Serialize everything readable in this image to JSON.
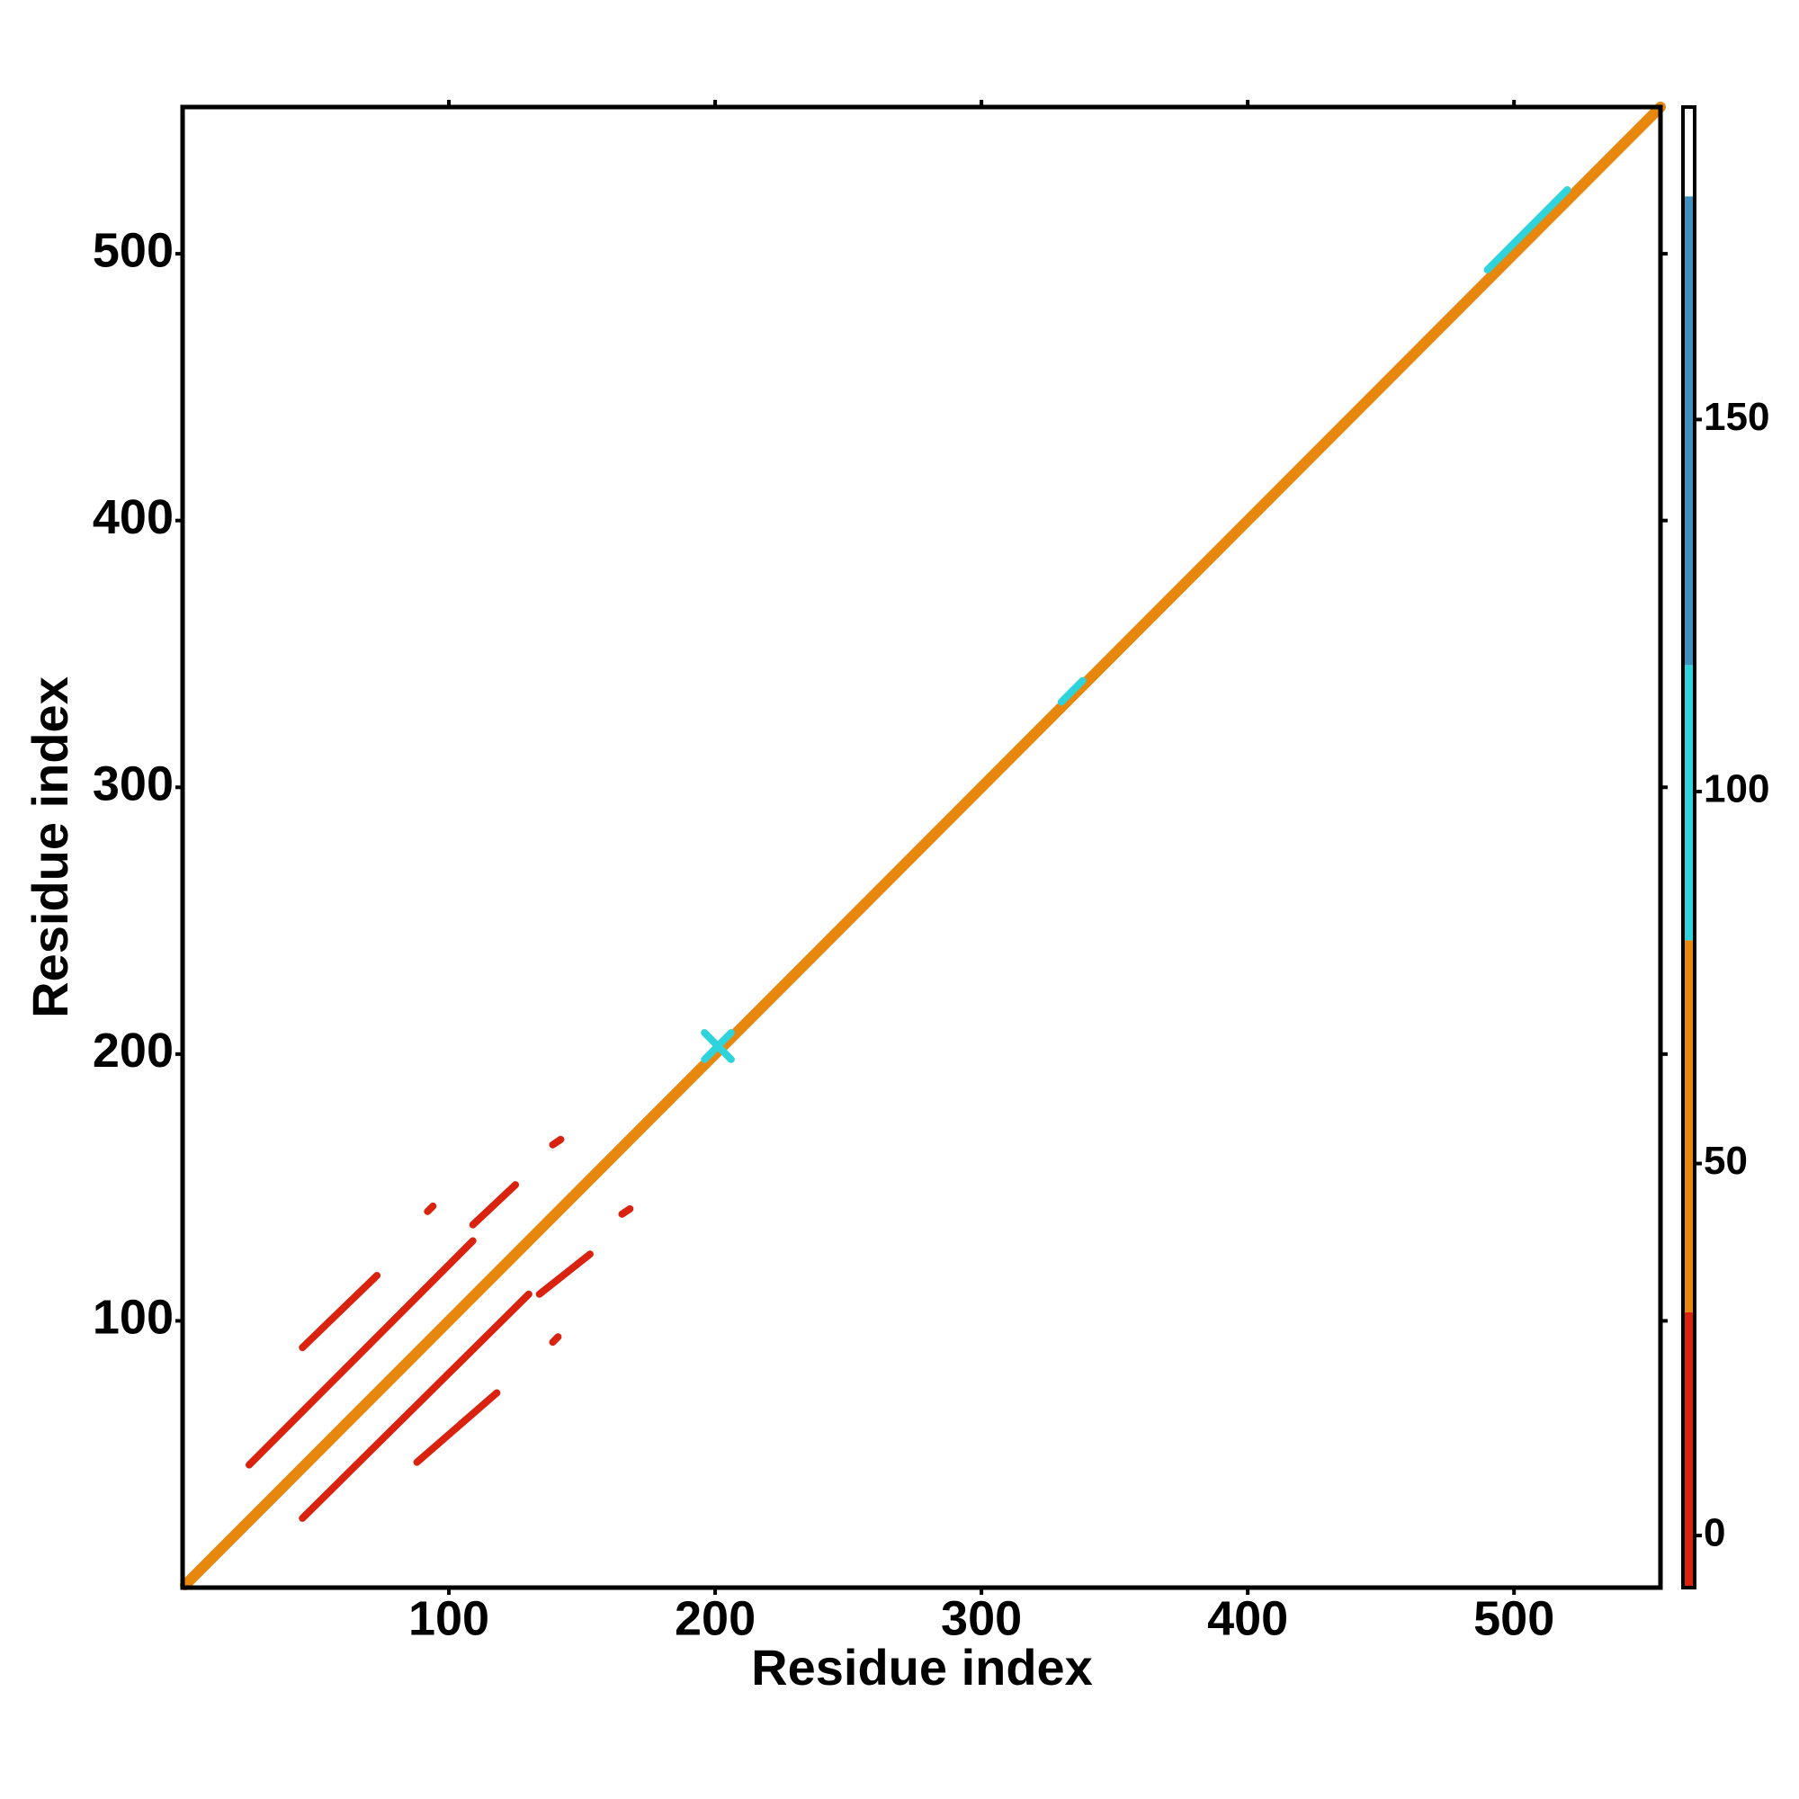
{
  "chart_data": {
    "type": "contact_map",
    "xlabel": "Residue index",
    "ylabel": "Residue index",
    "xlim": [
      0,
      555
    ],
    "ylim": [
      0,
      555
    ],
    "xticks": [
      100,
      200,
      300,
      400,
      500
    ],
    "yticks": [
      100,
      200,
      300,
      400,
      500
    ],
    "colorbar": {
      "lim": [
        -7,
        192
      ],
      "ticks": [
        0,
        50,
        100,
        150
      ],
      "bins": [
        -7,
        30,
        80,
        117,
        180,
        192
      ],
      "colors": [
        "#d9230f",
        "#e8870e",
        "#2fd3dc",
        "#3f8fbf",
        "#ffffff"
      ]
    },
    "contacts": [
      {
        "x0": 1,
        "y0": 1,
        "x1": 555,
        "y1": 555,
        "value": 60
      },
      {
        "x0": 25,
        "y0": 46,
        "x1": 109,
        "y1": 130,
        "value": 10
      },
      {
        "x0": 109,
        "y0": 136,
        "x1": 125,
        "y1": 151,
        "value": 10
      },
      {
        "x0": 45,
        "y0": 26,
        "x1": 130,
        "y1": 110,
        "value": 10
      },
      {
        "x0": 134,
        "y0": 110,
        "x1": 153,
        "y1": 125,
        "value": 10
      },
      {
        "x0": 45,
        "y0": 90,
        "x1": 73,
        "y1": 117,
        "value": 20
      },
      {
        "x0": 88,
        "y0": 47,
        "x1": 118,
        "y1": 73,
        "value": 20
      },
      {
        "x0": 139,
        "y0": 166,
        "x1": 142,
        "y1": 168,
        "value": 10
      },
      {
        "x0": 165,
        "y0": 140,
        "x1": 168,
        "y1": 142,
        "value": 10
      },
      {
        "x0": 92,
        "y0": 141,
        "x1": 94,
        "y1": 143,
        "value": 20
      },
      {
        "x0": 139,
        "y0": 92,
        "x1": 141,
        "y1": 94,
        "value": 20
      },
      {
        "x0": 196,
        "y0": 198,
        "x1": 206,
        "y1": 208,
        "value": 100
      },
      {
        "x0": 196,
        "y0": 208,
        "x1": 206,
        "y1": 198,
        "value": 100
      },
      {
        "x0": 330,
        "y0": 332,
        "x1": 338,
        "y1": 340,
        "value": 100
      },
      {
        "x0": 490,
        "y0": 494,
        "x1": 520,
        "y1": 524,
        "value": 100
      }
    ]
  }
}
